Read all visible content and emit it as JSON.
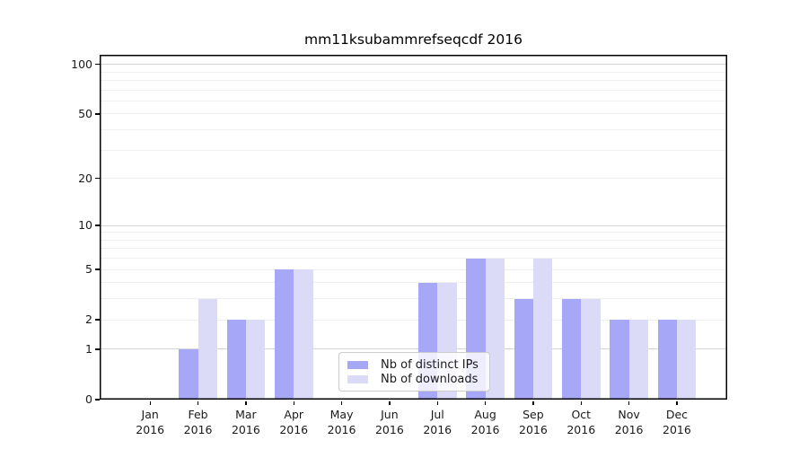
{
  "chart_data": {
    "type": "bar",
    "title": "mm11ksubammrefseqcdf 2016",
    "categories": [
      "Jan 2016",
      "Feb 2016",
      "Mar 2016",
      "Apr 2016",
      "May 2016",
      "Jun 2016",
      "Jul 2016",
      "Aug 2016",
      "Sep 2016",
      "Oct 2016",
      "Nov 2016",
      "Dec 2016"
    ],
    "series": [
      {
        "name": "Nb of distinct IPs",
        "color": "#a7a7f7",
        "values": [
          0,
          1,
          2,
          5,
          0,
          0,
          4,
          6,
          3,
          3,
          2,
          2
        ]
      },
      {
        "name": "Nb of downloads",
        "color": "#dbdbf8",
        "values": [
          0,
          3,
          2,
          5,
          0,
          0,
          4,
          6,
          6,
          3,
          2,
          2
        ]
      }
    ],
    "yticks": [
      0,
      1,
      2,
      5,
      10,
      20,
      50,
      100
    ],
    "scale": "log1p",
    "ylim": [
      0,
      113
    ],
    "xlabel": "",
    "ylabel": "",
    "grid": "horizontal",
    "minor_gridlines": [
      2,
      3,
      4,
      5,
      6,
      7,
      8,
      9,
      20,
      30,
      40,
      50,
      60,
      70,
      80,
      90
    ],
    "major_gridlines": [
      1,
      10,
      100
    ],
    "legend_position": "lower center"
  },
  "colors": {
    "axis": "#000000",
    "minor_grid": "#efefef",
    "major_grid": "#d5d5d5",
    "text": "#1a1a1a"
  }
}
